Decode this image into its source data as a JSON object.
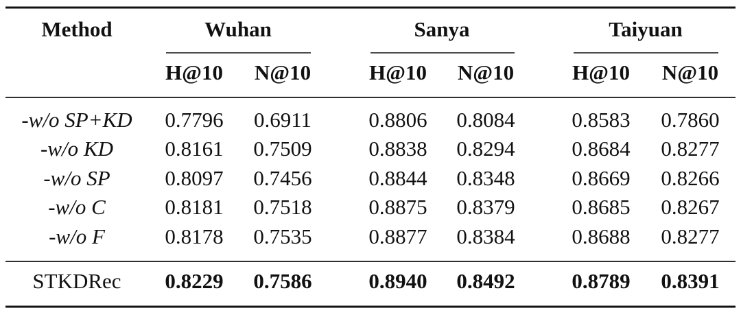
{
  "table": {
    "header": {
      "method": "Method",
      "groups": [
        "Wuhan",
        "Sanya",
        "Taiyuan"
      ],
      "metrics": [
        "H@10",
        "N@10",
        "H@10",
        "N@10",
        "H@10",
        "N@10"
      ]
    },
    "rows": [
      [
        "-w/o SP+KD",
        "0.7796",
        "0.6911",
        "0.8806",
        "0.8084",
        "0.8583",
        "0.7860"
      ],
      [
        "-w/o KD",
        "0.8161",
        "0.7509",
        "0.8838",
        "0.8294",
        "0.8684",
        "0.8277"
      ],
      [
        "-w/o SP",
        "0.8097",
        "0.7456",
        "0.8844",
        "0.8348",
        "0.8669",
        "0.8266"
      ],
      [
        "-w/o C",
        "0.8181",
        "0.7518",
        "0.8875",
        "0.8379",
        "0.8685",
        "0.8267"
      ],
      [
        "-w/o F",
        "0.8178",
        "0.7535",
        "0.8877",
        "0.8384",
        "0.8688",
        "0.8277"
      ]
    ],
    "final": [
      "STKDRec",
      "0.8229",
      "0.7586",
      "0.8940",
      "0.8492",
      "0.8789",
      "0.8391"
    ]
  }
}
